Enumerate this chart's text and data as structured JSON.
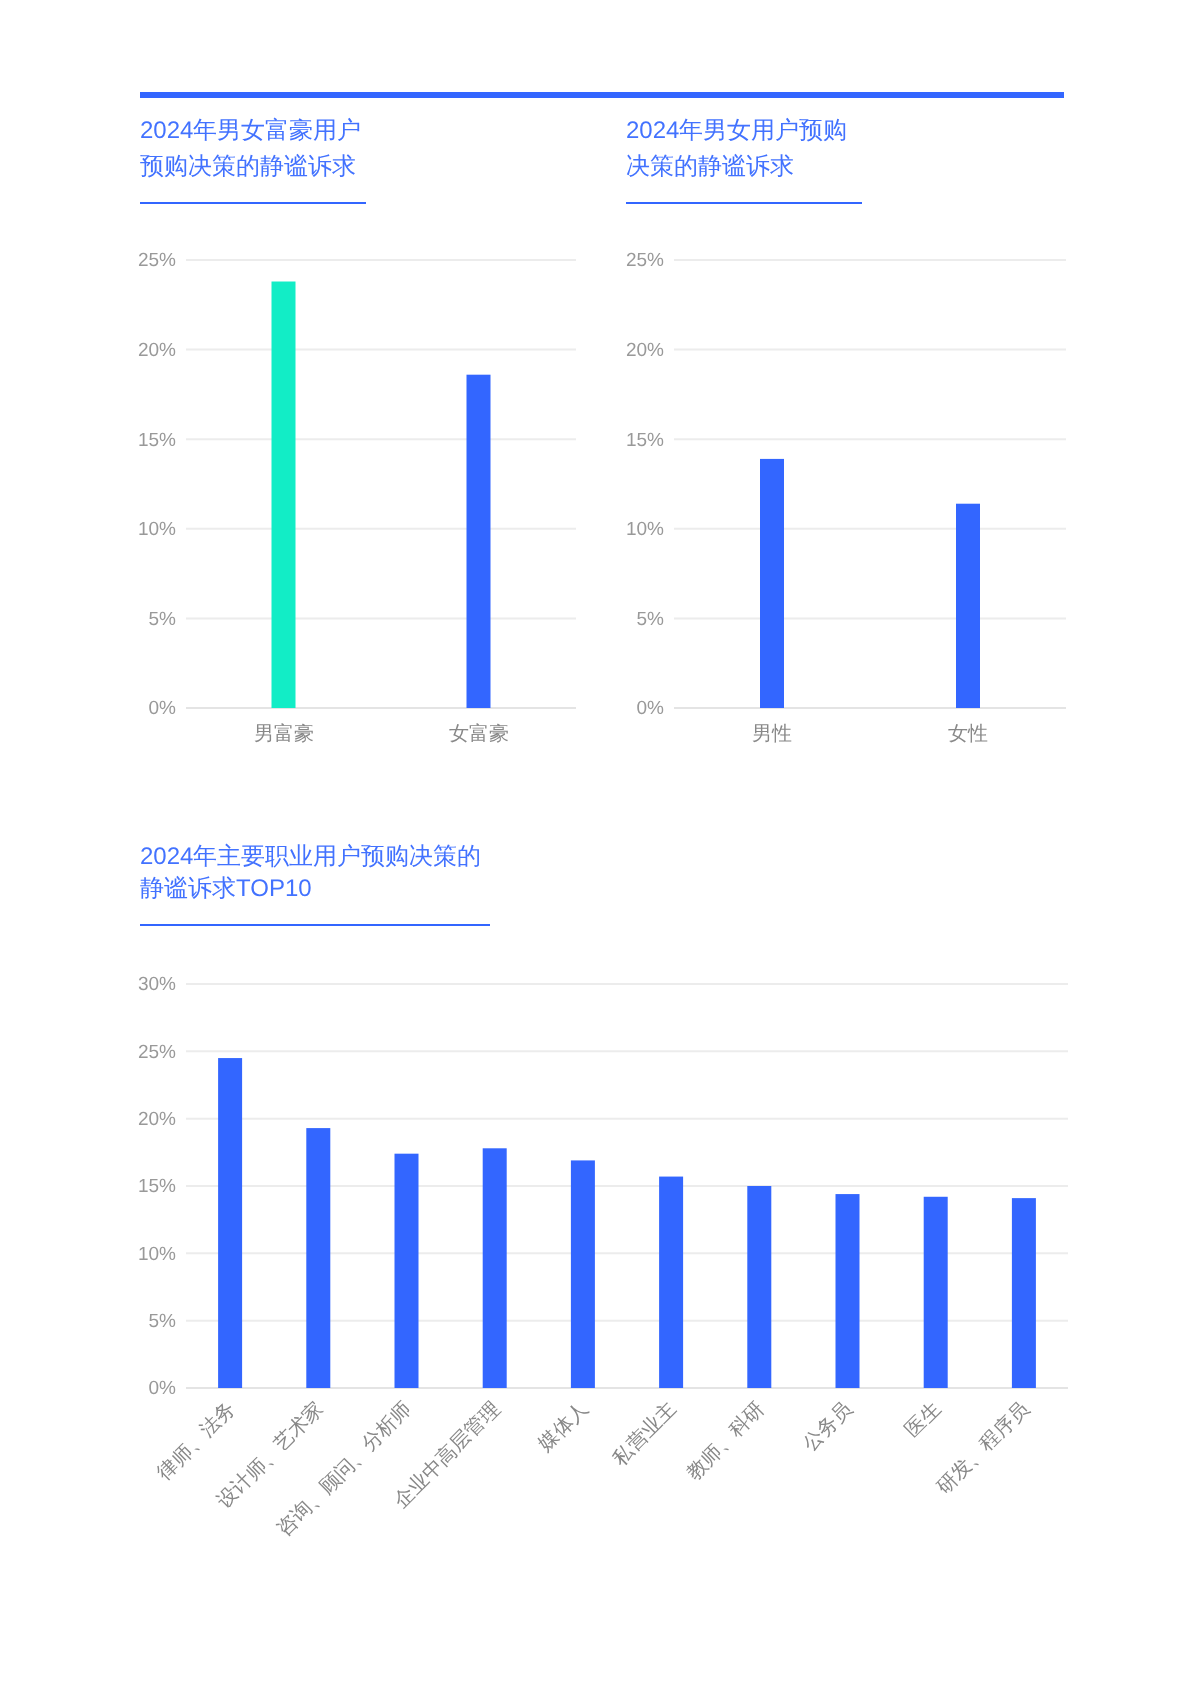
{
  "chart_data": [
    {
      "type": "bar",
      "title": "2024年男女富豪用户预购决策的静谧诉求",
      "categories": [
        "男富豪",
        "女富豪"
      ],
      "values": [
        23.8,
        18.6
      ],
      "colors": [
        "#12edc6",
        "#3366ff"
      ],
      "ylim": [
        0,
        25
      ],
      "yticks": [
        {
          "value": 0,
          "label": "0%"
        },
        {
          "value": 5,
          "label": "5%"
        },
        {
          "value": 10,
          "label": "10%"
        },
        {
          "value": 15,
          "label": "15%"
        },
        {
          "value": 20,
          "label": "20%"
        },
        {
          "value": 25,
          "label": "25%"
        }
      ],
      "grid": "y"
    },
    {
      "type": "bar",
      "title": "2024年男女用户预购决策的静谧诉求",
      "categories": [
        "男性",
        "女性"
      ],
      "values": [
        13.9,
        11.4
      ],
      "color": "#3366ff",
      "ylim": [
        0,
        25
      ],
      "yticks": [
        {
          "value": 0,
          "label": "0%"
        },
        {
          "value": 5,
          "label": "5%"
        },
        {
          "value": 10,
          "label": "10%"
        },
        {
          "value": 15,
          "label": "15%"
        },
        {
          "value": 20,
          "label": "20%"
        },
        {
          "value": 25,
          "label": "25%"
        }
      ],
      "grid": "y"
    },
    {
      "type": "bar",
      "title": "2024年主要职业用户预购决策的静谧诉求TOP10",
      "categories": [
        "律师、法务",
        "设计师、艺术家",
        "咨询、顾问、分析师",
        "企业中高层管理",
        "媒体人",
        "私营业主",
        "教师、科研",
        "公务员",
        "医生",
        "研发、程序员"
      ],
      "values": [
        24.5,
        19.3,
        17.4,
        17.8,
        16.9,
        15.7,
        15.0,
        14.4,
        14.2,
        14.1
      ],
      "color": "#3366ff",
      "ylim": [
        0,
        30
      ],
      "yticks": [
        {
          "value": 0,
          "label": "0%"
        },
        {
          "value": 5,
          "label": "5%"
        },
        {
          "value": 10,
          "label": "10%"
        },
        {
          "value": 15,
          "label": "15%"
        },
        {
          "value": 20,
          "label": "20%"
        },
        {
          "value": 25,
          "label": "25%"
        },
        {
          "value": 30,
          "label": "30%"
        }
      ],
      "grid": "y"
    }
  ]
}
